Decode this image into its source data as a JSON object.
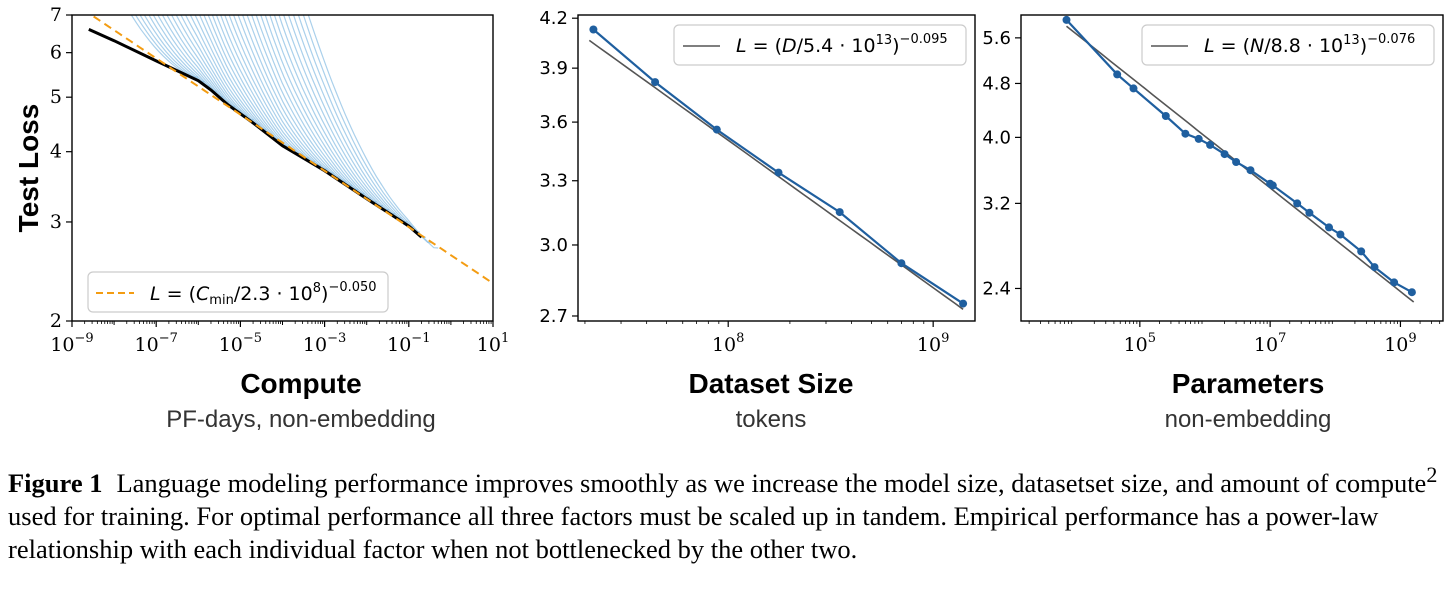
{
  "caption": {
    "lead": "Figure 1",
    "text_1": "Language modeling performance improves smoothly as we increase the model size, datasetset size, and amount of compute",
    "sup": "2",
    "text_2": " used for training. For optimal performance all three factors must be scaled up in tandem. Empirical performance has a power-law relationship with each individual factor when not bottlenecked by the other two."
  },
  "chart_data": [
    {
      "type": "line",
      "xlabel": "Compute",
      "xsublabel": "PF-days, non-embedding",
      "ylabel": "Test Loss",
      "xscale": "log",
      "yscale": "log",
      "xlim": [
        1e-09,
        10
      ],
      "ylim": [
        2,
        7
      ],
      "xticks": [
        1e-09,
        1e-07,
        1e-05,
        0.001,
        0.1,
        10
      ],
      "xtick_exponents": [
        "−9",
        "−7",
        "−5",
        "−3",
        "−1",
        "1"
      ],
      "yticks": [
        2,
        3,
        4,
        5,
        6,
        7
      ],
      "ytick_labels": [
        "2",
        "3",
        "4",
        "5",
        "6",
        "7"
      ],
      "legend": {
        "location": "lower left",
        "text": "L = (Cmin/2.3 · 10^8)^−0.050"
      },
      "fit": {
        "name": "L = (Cmin/2.3 · 10^8)^−0.050",
        "color": "#f39c12",
        "style": "dashed",
        "scale": 230000000.0,
        "exponent": -0.05
      },
      "frontier": {
        "color": "#000000",
        "x": [
          2.5e-09,
          1e-08,
          1e-07,
          1e-06,
          2e-06,
          5e-06,
          2e-05,
          0.0001,
          0.001,
          0.01,
          0.1,
          0.2
        ],
        "y": [
          6.6,
          6.3,
          5.8,
          5.35,
          5.15,
          4.85,
          4.5,
          4.1,
          3.7,
          3.3,
          2.95,
          2.82
        ]
      },
      "training_curves": {
        "color": "#8ec0e4",
        "count": 40,
        "end_compute_range": [
          1e-06,
          0.5
        ]
      }
    },
    {
      "type": "line",
      "xlabel": "Dataset Size",
      "xsublabel": "tokens",
      "xscale": "log",
      "yscale": "log",
      "xlim": [
        18500000.0,
        1600000000.0
      ],
      "ylim": [
        2.68,
        4.22
      ],
      "xticks": [
        100000000.0,
        1000000000.0
      ],
      "xtick_exponents": [
        "8",
        "9"
      ],
      "yticks": [
        2.7,
        3.0,
        3.3,
        3.6,
        3.9,
        4.2
      ],
      "ytick_labels": [
        "2.7",
        "3.0",
        "3.3",
        "3.6",
        "3.9",
        "4.2"
      ],
      "legend": {
        "location": "upper right",
        "text": "L = (D/5.4 · 10^13)^−0.095"
      },
      "fit": {
        "name": "L = (D/5.4 · 10^13)^−0.095",
        "color": "#555555",
        "scale": 54000000000000.0,
        "exponent": -0.095,
        "x_range": [
          21000000.0,
          1400000000.0
        ]
      },
      "series": [
        {
          "color": "#1f5f9f",
          "x": [
            22000000.0,
            44000000.0,
            88000000.0,
            176000000.0,
            350000000.0,
            700000000.0,
            1400000000.0
          ],
          "y": [
            4.13,
            3.82,
            3.56,
            3.34,
            3.15,
            2.92,
            2.75
          ]
        }
      ]
    },
    {
      "type": "line",
      "xlabel": "Parameters",
      "xsublabel": "non-embedding",
      "xscale": "log",
      "yscale": "log",
      "xlim": [
        1500.0,
        4500000000.0
      ],
      "ylim": [
        2.15,
        6.05
      ],
      "xticks": [
        100000.0,
        10000000.0,
        1000000000.0
      ],
      "xtick_exponents": [
        "5",
        "7",
        "9"
      ],
      "yticks": [
        2.4,
        3.2,
        4.0,
        4.8,
        5.6
      ],
      "ytick_labels": [
        "2.4",
        "3.2",
        "4.0",
        "4.8",
        "5.6"
      ],
      "legend": {
        "location": "upper right",
        "text": "L = (N/8.8 · 10^13)^−0.076"
      },
      "fit": {
        "name": "L = (N/8.8 · 10^13)^−0.076",
        "color": "#555555",
        "scale": 88000000000000.0,
        "exponent": -0.076,
        "x_range": [
          7500.0,
          1600000000.0
        ]
      },
      "series": [
        {
          "color": "#1f5f9f",
          "x": [
            7500.0,
            45000.0,
            80000.0,
            250000.0,
            500000.0,
            800000.0,
            1200000.0,
            2000000.0,
            3000000.0,
            5000000.0,
            10000000.0,
            11000000.0,
            26000000.0,
            40000000.0,
            80000000.0,
            120000000.0,
            250000000.0,
            400000000.0,
            800000000.0,
            1500000000.0
          ],
          "y": [
            5.95,
            4.95,
            4.72,
            4.3,
            4.05,
            3.98,
            3.9,
            3.78,
            3.68,
            3.58,
            3.42,
            3.4,
            3.2,
            3.1,
            2.95,
            2.88,
            2.72,
            2.58,
            2.45,
            2.37
          ]
        }
      ]
    }
  ]
}
